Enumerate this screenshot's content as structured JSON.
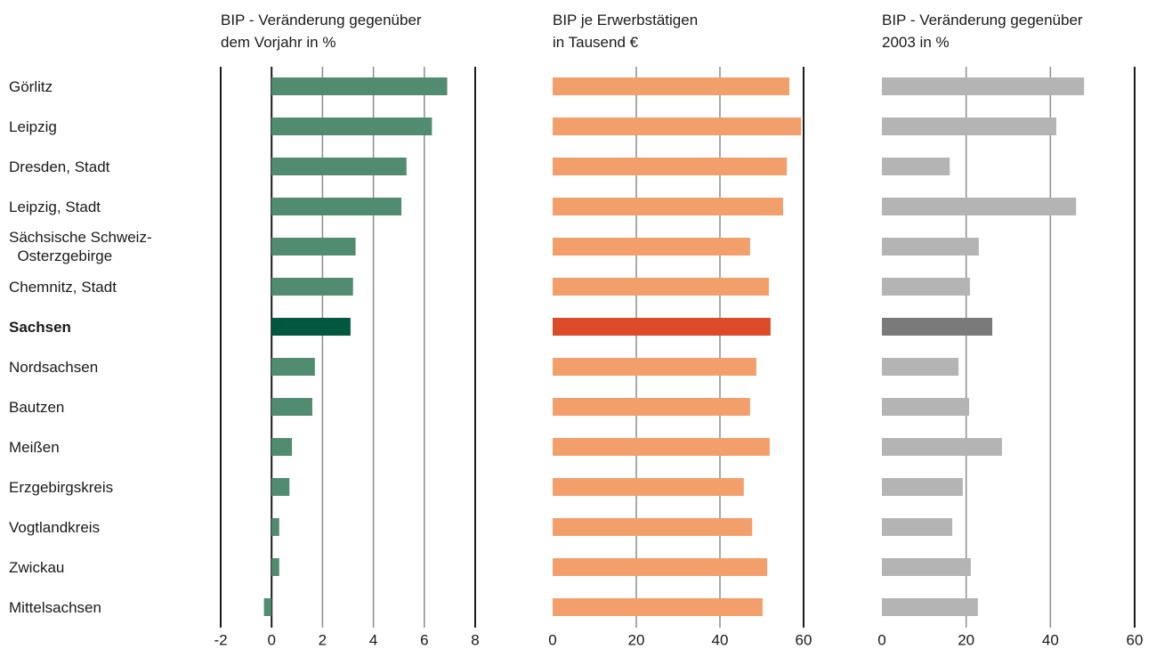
{
  "chart_data": {
    "type": "bar",
    "orientation": "horizontal",
    "categories": [
      "Görlitz",
      "Leipzig",
      "Dresden, Stadt",
      "Leipzig, Stadt",
      "Sächsische Schweiz-\n  Osterzgebirge",
      "Chemnitz, Stadt",
      "Sachsen",
      "Nordsachsen",
      "Bautzen",
      "Meißen",
      "Erzgebirgskreis",
      "Vogtlandkreis",
      "Zwickau",
      "Mittelsachsen"
    ],
    "highlight_index": 6,
    "series": [
      {
        "name": "BIP - Veränderung gegenüber\ndem Vorjahr in %",
        "color": "#518c70",
        "highlight_color": "#00583f",
        "values": [
          6.9,
          6.3,
          5.3,
          5.1,
          3.3,
          3.2,
          3.1,
          1.7,
          1.6,
          0.8,
          0.7,
          0.3,
          0.3,
          -0.3
        ],
        "xlim": [
          -2,
          8
        ],
        "xticks": [
          -2,
          0,
          2,
          4,
          6,
          8
        ]
      },
      {
        "name": "BIP je Erwerbstätigen\nin Tausend €",
        "color": "#f39f6c",
        "highlight_color": "#dc4b28",
        "values": [
          56.6,
          59.4,
          56,
          55.1,
          47.2,
          51.7,
          52.1,
          48.7,
          47.2,
          51.9,
          45.7,
          47.7,
          51.3,
          50.2
        ],
        "xlim": [
          0,
          60
        ],
        "xticks": [
          0,
          20,
          40,
          60
        ]
      },
      {
        "name": "BIP - Veränderung gegenüber\n2003 in %",
        "color": "#b4b4b4",
        "highlight_color": "#7a7a7a",
        "values": [
          48,
          41.4,
          16.1,
          46.1,
          23,
          20.9,
          26.2,
          18.2,
          20.7,
          28.5,
          19.2,
          16.7,
          21.1,
          22.8
        ],
        "xlim": [
          0,
          60
        ],
        "xticks": [
          0,
          20,
          40,
          60
        ]
      }
    ]
  }
}
